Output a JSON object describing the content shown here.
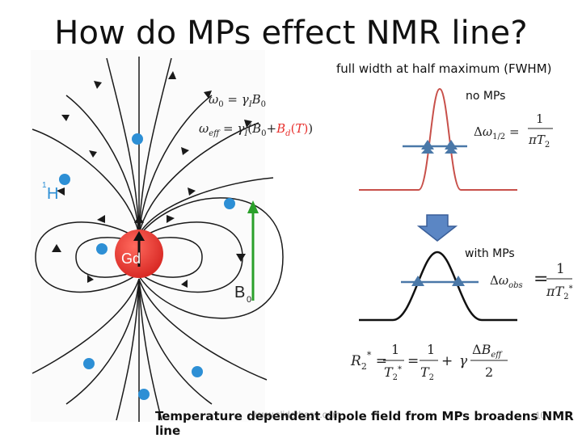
{
  "slide": {
    "title": "How do MPs effect NMR line?",
    "fwhm_note": "full width at half maximum (FWHM)",
    "no_mps_label": "no MPs",
    "with_mps_label": "with MPs",
    "bottom_line": "Temperature dependent dipole field from MPs broadens NMR line",
    "watermark": "www.sliderbase.com",
    "page_number": "10"
  },
  "diagram": {
    "center_label": "Gd",
    "proton_label": "H",
    "proton_mass_number": "1",
    "field_label": "B",
    "field_subscript": "0"
  },
  "colors": {
    "gd_sphere": "#e8312e",
    "proton": "#2d8fd5",
    "field_arrow": "#2aa02a",
    "narrow_line": "#c8504a",
    "fwhm_markers": "#4a78a8",
    "arrow_down": "#5b86c4"
  }
}
